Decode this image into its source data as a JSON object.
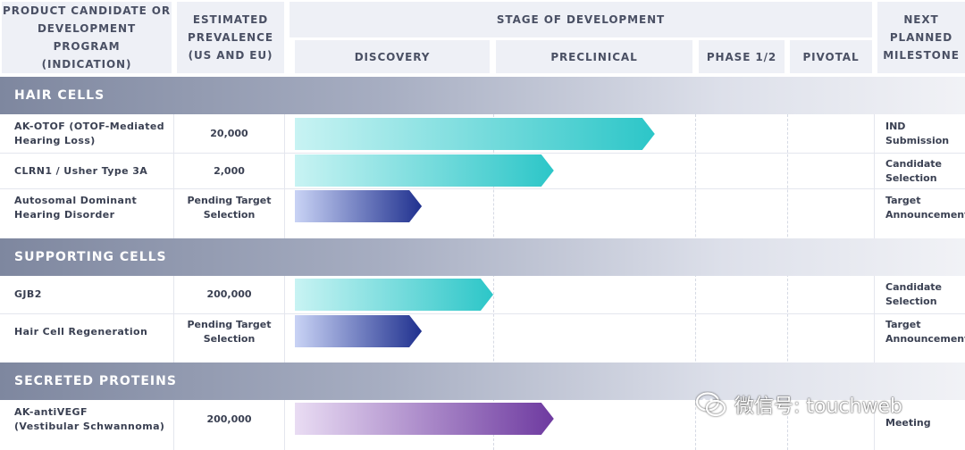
{
  "header": {
    "col_program": "PRODUCT CANDIDATE OR\nDEVELOPMENT PROGRAM\n(INDICATION)",
    "col_prevalence": "ESTIMATED\nPREVALENCE\n(US AND EU)",
    "col_stage": "STAGE OF DEVELOPMENT",
    "col_milestone": "NEXT\nPLANNED\nMILESTONE"
  },
  "chart_data": {
    "type": "bar",
    "stages": [
      "DISCOVERY",
      "PRECLINICAL",
      "PHASE 1/2",
      "PIVOTAL"
    ],
    "sections": [
      {
        "title": "HAIR CELLS",
        "rows": [
          {
            "program": "AK-OTOF (OTOF-Mediated\nHearing Loss)",
            "prevalence": "20,000",
            "milestone": "IND\nSubmission",
            "progress": 1.8,
            "color": "teal"
          },
          {
            "program": "CLRN1 / Usher Type 3A",
            "prevalence": "2,000",
            "milestone": "Candidate\nSelection",
            "progress": 1.3,
            "color": "teal"
          },
          {
            "program": "Autosomal Dominant\nHearing Disorder",
            "prevalence": "Pending Target\nSelection",
            "milestone": "Target\nAnnouncement",
            "progress": 0.64,
            "color": "blue"
          }
        ]
      },
      {
        "title": "SUPPORTING CELLS",
        "rows": [
          {
            "program": "GJB2",
            "prevalence": "200,000",
            "milestone": "Candidate\nSelection",
            "progress": 1.0,
            "color": "teal"
          },
          {
            "program": "Hair Cell Regeneration",
            "prevalence": "Pending Target\nSelection",
            "milestone": "Target\nAnnouncement",
            "progress": 0.64,
            "color": "blue"
          }
        ]
      },
      {
        "title": "SECRETED PROTEINS",
        "rows": [
          {
            "program": "AK-antiVEGF\n(Vestibular Schwannoma)",
            "prevalence": "200,000",
            "milestone": "Meeting",
            "progress": 1.3,
            "color": "purple"
          }
        ]
      }
    ],
    "colors": {
      "teal": [
        "#c8f3f3",
        "#2cc6c8"
      ],
      "blue": [
        "#c9d3f5",
        "#20318f"
      ],
      "purple": [
        "#e9dcf3",
        "#6e3aa0"
      ]
    }
  },
  "watermark": {
    "text": "微信号: touchweb",
    "icon": "wechat-icon"
  }
}
